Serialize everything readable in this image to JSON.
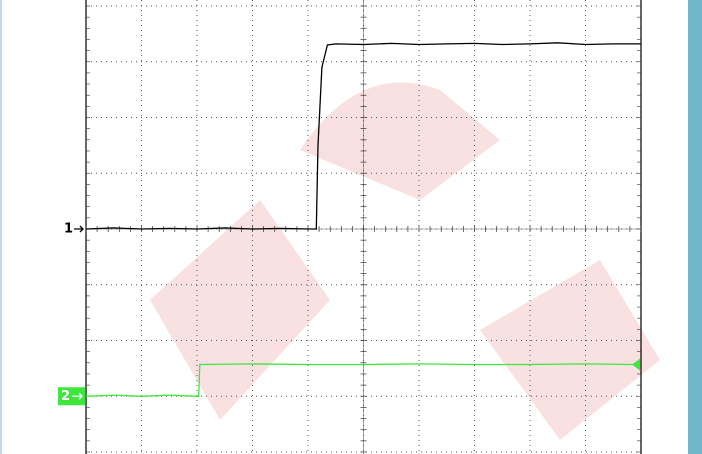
{
  "chart_data": {
    "type": "line",
    "xlim": [
      0,
      10
    ],
    "ylim": [
      -4,
      4
    ],
    "xticks": [
      0,
      1,
      2,
      3,
      4,
      5,
      6,
      7,
      8,
      9,
      10
    ],
    "yticks": [
      -4,
      -3,
      -2,
      -1,
      0,
      1,
      2,
      3,
      4
    ],
    "grid": true,
    "series": [
      {
        "name": "1",
        "color": "#000000",
        "level": 0,
        "x": [
          0,
          0.5,
          1,
          1.5,
          2,
          2.5,
          3,
          3.5,
          4,
          4.15,
          4.18,
          4.25,
          4.35,
          4.5,
          5,
          5.5,
          6,
          6.5,
          7,
          7.5,
          8,
          8.5,
          9,
          9.5,
          10
        ],
        "values": [
          0,
          0.02,
          0,
          0.01,
          0,
          0.02,
          0,
          0.01,
          0,
          0,
          1.5,
          2.9,
          3.3,
          3.32,
          3.31,
          3.33,
          3.31,
          3.32,
          3.33,
          3.31,
          3.32,
          3.34,
          3.31,
          3.32,
          3.32
        ]
      },
      {
        "name": "2",
        "color": "#3ee63e",
        "level": -3,
        "x": [
          0,
          0.5,
          1,
          1.5,
          2,
          2.03,
          2.05,
          3,
          4,
          5,
          6,
          7,
          8,
          9,
          9.85
        ],
        "values": [
          -3,
          -2.98,
          -3,
          -2.98,
          -3,
          -3,
          -2.43,
          -2.42,
          -2.43,
          -2.43,
          -2.42,
          -2.43,
          -2.43,
          -2.42,
          -2.43
        ]
      }
    ]
  }
}
